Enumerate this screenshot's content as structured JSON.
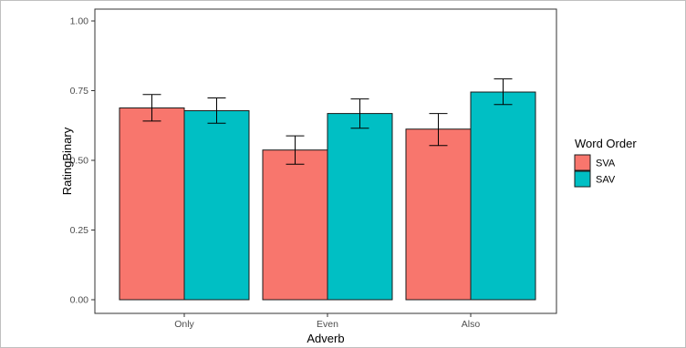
{
  "chart_data": {
    "type": "bar",
    "title": "",
    "xlabel": "Adverb",
    "ylabel": "RatingBinary",
    "categories": [
      "Only",
      "Even",
      "Also"
    ],
    "ylim": [
      0,
      1
    ],
    "yticks": [
      "0.00",
      "0.25",
      "0.50",
      "0.75",
      "1.00"
    ],
    "ytick_values": [
      0,
      0.25,
      0.5,
      0.75,
      1.0
    ],
    "grid": false,
    "legend": {
      "title": "Word Order",
      "placement": "right"
    },
    "series": [
      {
        "name": "SVA",
        "color": "#F8766D",
        "values": [
          0.688,
          0.537,
          0.612
        ],
        "error_low": [
          0.641,
          0.486,
          0.553
        ],
        "error_high": [
          0.736,
          0.588,
          0.668
        ]
      },
      {
        "name": "SAV",
        "color": "#00BFC4",
        "values": [
          0.678,
          0.668,
          0.745
        ],
        "error_low": [
          0.633,
          0.615,
          0.7
        ],
        "error_high": [
          0.724,
          0.72,
          0.792
        ]
      }
    ]
  }
}
